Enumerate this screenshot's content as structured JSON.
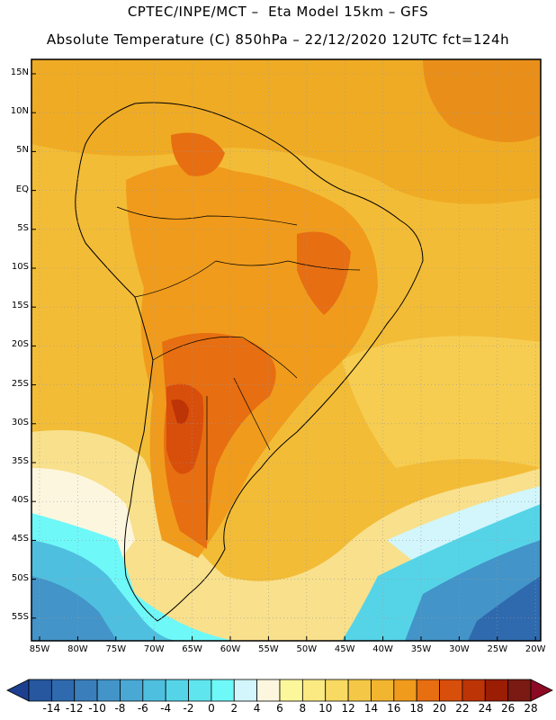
{
  "header": {
    "line1": "CPTEC/INPE/MCT –  Eta Model 15km – GFS",
    "line2": "Absolute Temperature (C) 850hPa – 22/12/2020 12UTC fct=124h"
  },
  "map": {
    "region": "South America",
    "lat_labels": [
      "15N",
      "10N",
      "5N",
      "EQ",
      "5S",
      "10S",
      "15S",
      "20S",
      "25S",
      "30S",
      "35S",
      "40S",
      "45S",
      "50S",
      "55S"
    ],
    "lon_labels": [
      "85W",
      "80W",
      "75W",
      "70W",
      "65W",
      "60W",
      "55W",
      "50W",
      "45W",
      "40W",
      "35W",
      "30W",
      "25W",
      "20W"
    ]
  },
  "colorbar": {
    "labels": [
      "-14",
      "-12",
      "-10",
      "-8",
      "-6",
      "-4",
      "-2",
      "0",
      "2",
      "4",
      "6",
      "8",
      "10",
      "12",
      "14",
      "16",
      "18",
      "20",
      "22",
      "24",
      "26",
      "28"
    ],
    "colors": [
      "#1d3f8f",
      "#26579f",
      "#2f6aae",
      "#3a7ebb",
      "#4394c8",
      "#4aa8d4",
      "#4fbfdf",
      "#55d4e8",
      "#5fe5ee",
      "#6ff8f8",
      "#d2f6fb",
      "#fdf6df",
      "#fdf79c",
      "#fbe982",
      "#f8da63",
      "#f4c846",
      "#f2b530",
      "#f09b1c",
      "#e76e11",
      "#d84e0b",
      "#bd3406",
      "#9a1d04",
      "#7a1a12",
      "#8c0a23"
    ]
  }
}
